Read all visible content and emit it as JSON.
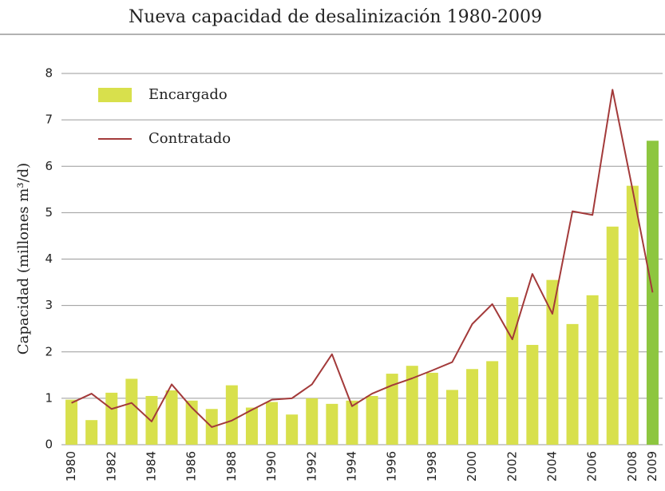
{
  "chart_data": {
    "type": "bar",
    "title": "Nueva capacidad de desalinización 1980-2009",
    "y_label": "Capacidad (millones m³/d)",
    "categories": [
      "1980",
      null,
      "1982",
      null,
      "1984",
      null,
      "1986",
      null,
      "1988",
      null,
      "1990",
      null,
      "1992",
      null,
      "1994",
      null,
      "1996",
      null,
      "1998",
      null,
      "2000",
      null,
      "2002",
      null,
      "2004",
      null,
      "2006",
      null,
      "2008",
      "2009"
    ],
    "series": [
      {
        "name": "Encargado",
        "type": "bar",
        "color": "#d8e04c",
        "colors": [
          "#d8e04c",
          "#d8e04c",
          "#d8e04c",
          "#d8e04c",
          "#d8e04c",
          "#d8e04c",
          "#d8e04c",
          "#d8e04c",
          "#d8e04c",
          "#d8e04c",
          "#d8e04c",
          "#d8e04c",
          "#d8e04c",
          "#d8e04c",
          "#d8e04c",
          "#d8e04c",
          "#d8e04c",
          "#d8e04c",
          "#d8e04c",
          "#d8e04c",
          "#d8e04c",
          "#d8e04c",
          "#d8e04c",
          "#d8e04c",
          "#d8e04c",
          "#d8e04c",
          "#d8e04c",
          "#d8e04c",
          "#d8e04c",
          "#8dc63f"
        ],
        "values": [
          0.97,
          0.53,
          1.12,
          1.42,
          1.05,
          1.17,
          0.95,
          0.77,
          1.28,
          0.8,
          0.92,
          0.65,
          1.0,
          0.88,
          0.95,
          1.05,
          1.53,
          1.7,
          1.55,
          1.18,
          1.63,
          1.8,
          3.18,
          2.15,
          3.55,
          2.6,
          3.22,
          4.7,
          5.58,
          6.55
        ]
      },
      {
        "name": "Contratado",
        "type": "line",
        "color": "#a33a3a",
        "values": [
          0.9,
          1.1,
          0.77,
          0.9,
          0.5,
          1.3,
          0.8,
          0.38,
          0.52,
          0.75,
          0.97,
          1.0,
          1.3,
          1.95,
          0.83,
          1.1,
          1.28,
          1.43,
          1.6,
          1.78,
          2.6,
          3.03,
          2.27,
          3.68,
          2.82,
          5.03,
          4.95,
          7.65,
          5.5,
          3.28
        ]
      }
    ],
    "ylim": [
      0,
      8
    ],
    "yticks": [
      0,
      1,
      2,
      3,
      4,
      5,
      6,
      7,
      8
    ],
    "grid": true,
    "legend": "upper left"
  }
}
